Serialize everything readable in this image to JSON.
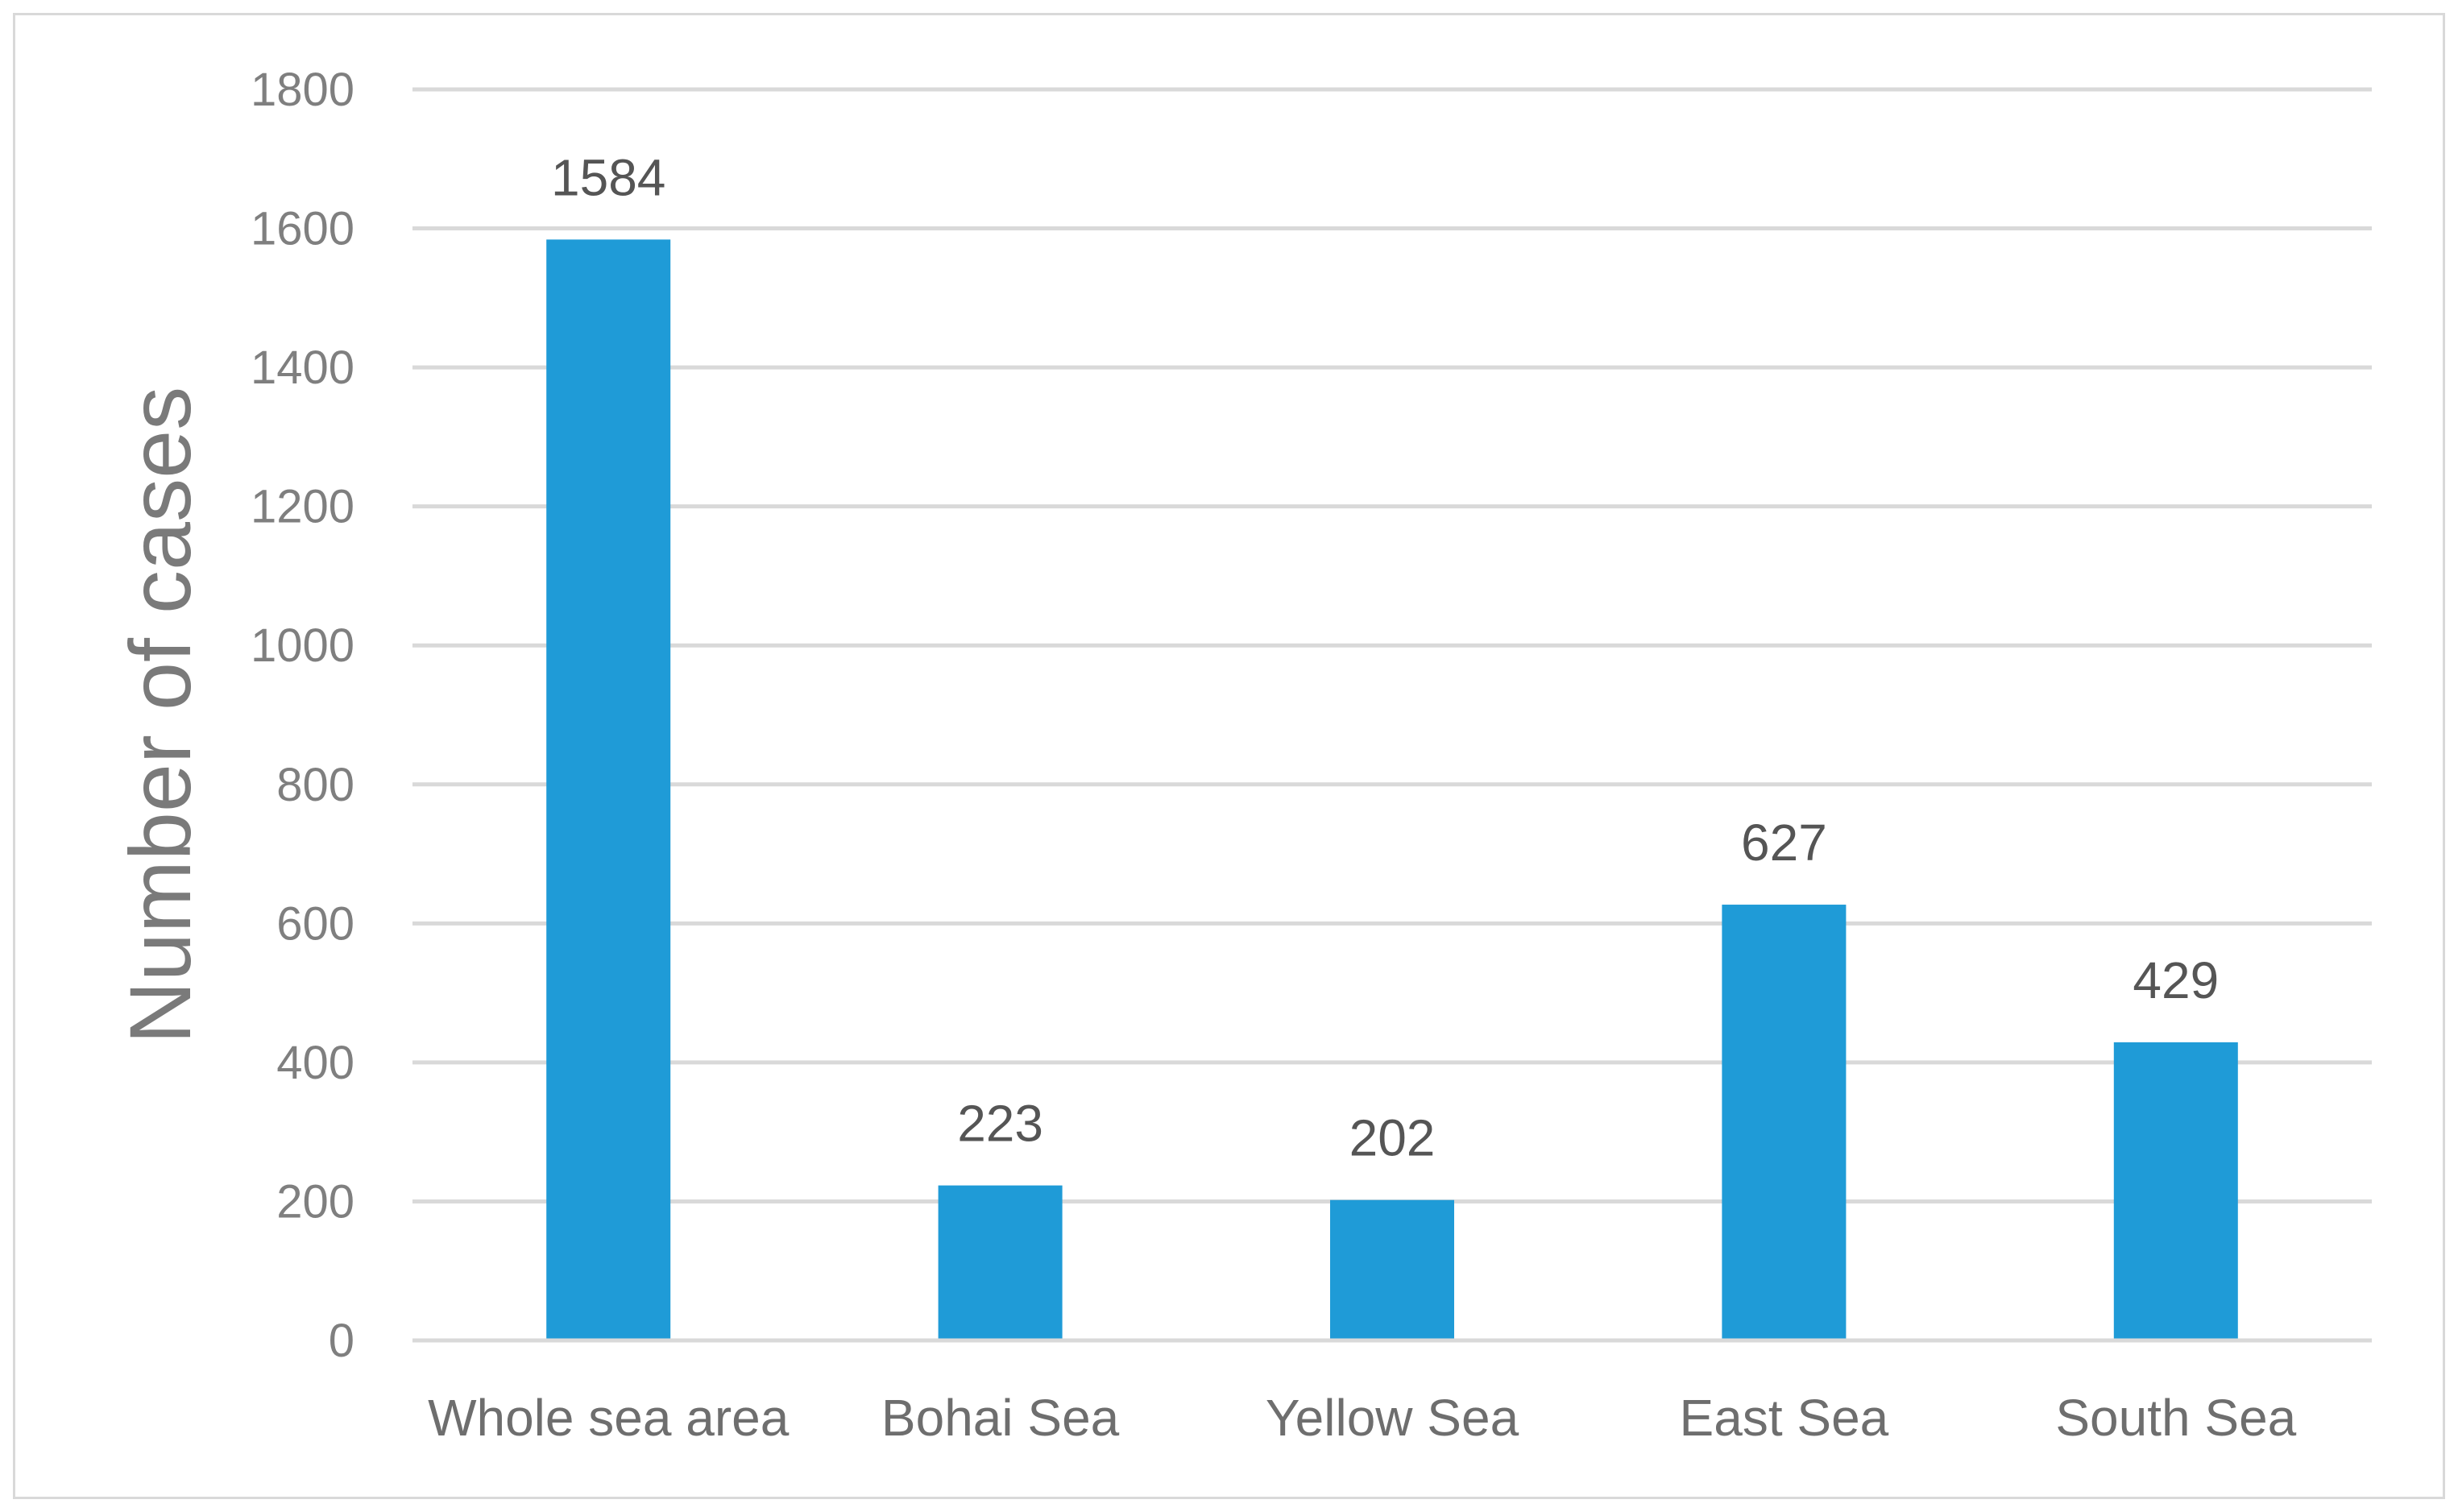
{
  "chart_data": {
    "type": "bar",
    "categories": [
      "Whole sea area",
      "Bohai Sea",
      "Yellow Sea",
      "East Sea",
      "South Sea"
    ],
    "values": [
      1584,
      223,
      202,
      627,
      429
    ],
    "data_labels": [
      "1584",
      "223",
      "202",
      "627",
      "429"
    ],
    "ylabel": "Number of cases",
    "ylim": [
      0,
      1800
    ],
    "yticks": [
      0,
      200,
      400,
      600,
      800,
      1000,
      1200,
      1400,
      1600,
      1800
    ],
    "grid": true,
    "legend": "none",
    "colors": {
      "bar": "#1f9bd7",
      "grid": "#d9d9d9",
      "tick_text": "#7f7f7f",
      "label_text": "#555555"
    }
  }
}
